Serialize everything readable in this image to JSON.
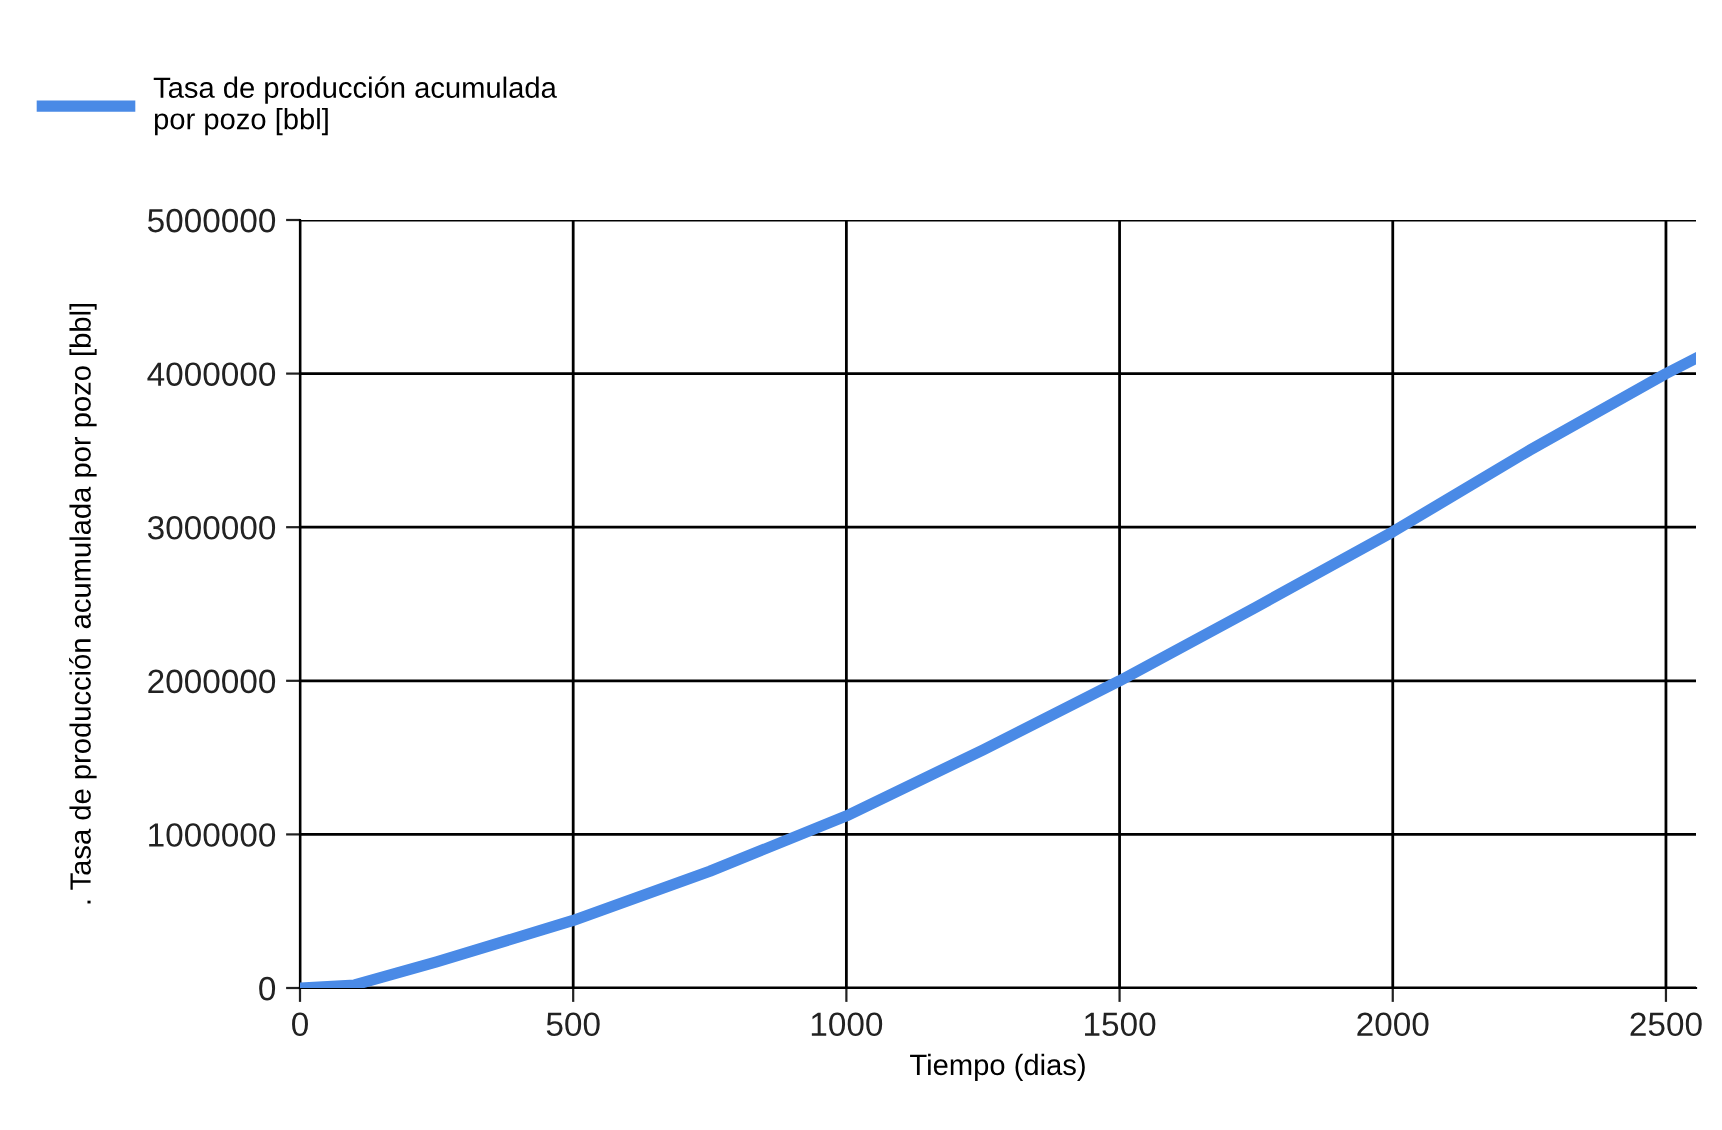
{
  "chart_data": {
    "type": "line",
    "xlabel": "Tiempo (dias)",
    "ylabel": ". Tasa de producción acumulada por pozo [bbl]",
    "x": [
      0,
      100,
      250,
      500,
      750,
      1000,
      1250,
      1500,
      1750,
      2000,
      2250,
      2500,
      2555
    ],
    "series": [
      {
        "name": "Tasa de producción acumulada\npor pozo [bbl]",
        "color": "#4a8ae6",
        "values": [
          0,
          20000,
          170000,
          440000,
          760000,
          1120000,
          1550000,
          2000000,
          2480000,
          2970000,
          3500000,
          4000000,
          4100000
        ]
      }
    ],
    "xlim": [
      0,
      2555
    ],
    "xticks": [
      0,
      500,
      1000,
      1500,
      2000,
      2500
    ],
    "ylim": [
      0,
      5000000
    ],
    "yticks": [
      0,
      1000000,
      2000000,
      3000000,
      4000000,
      5000000
    ],
    "grid": true,
    "legend": "top left",
    "marker": "none",
    "line_style": "solid"
  }
}
